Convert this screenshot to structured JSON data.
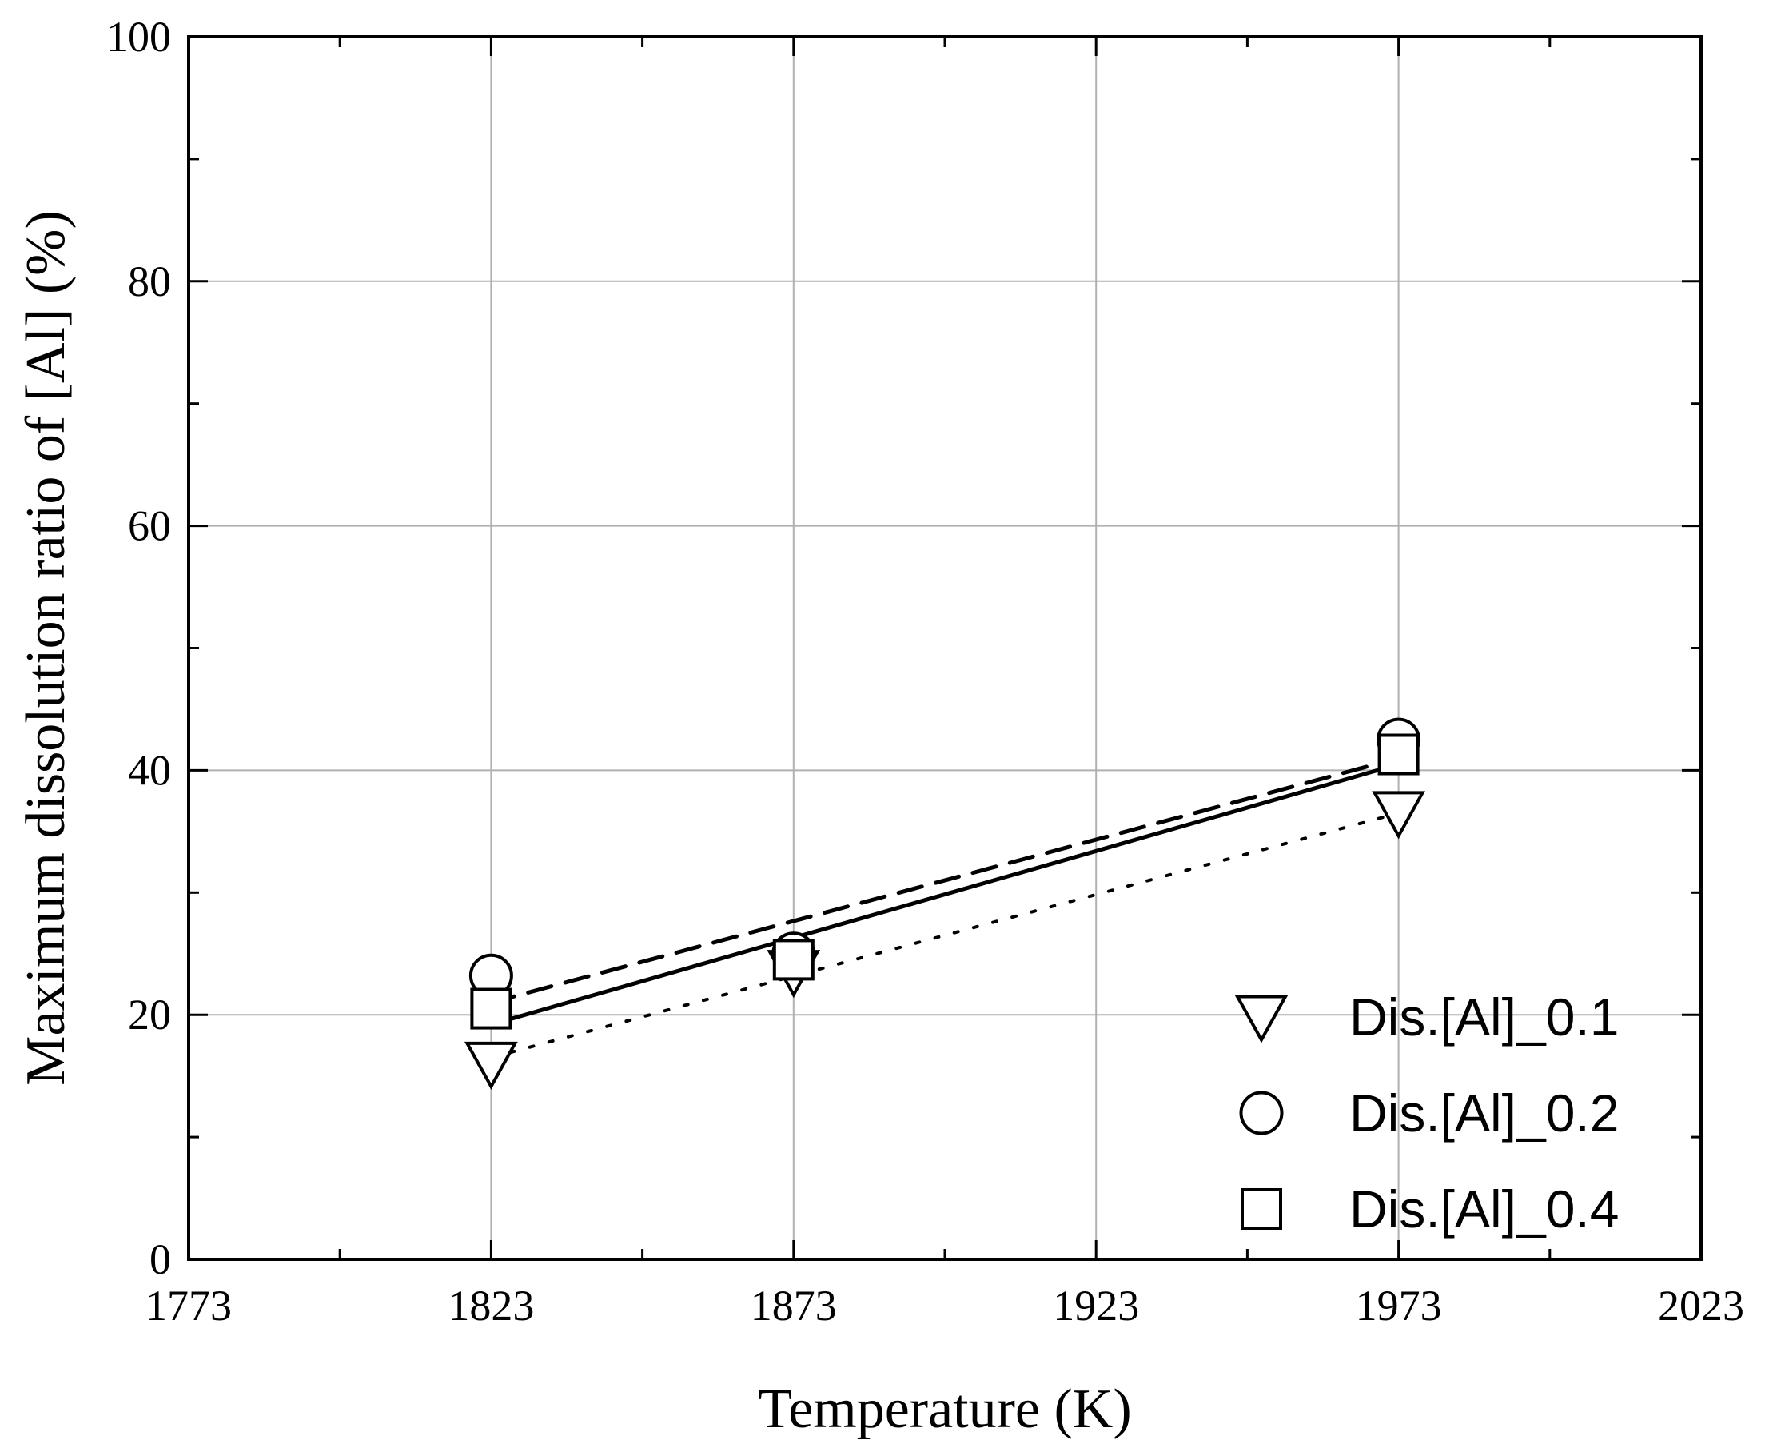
{
  "chart_data": {
    "type": "scatter",
    "xlabel": "Temperature (K)",
    "ylabel": "Maximum dissolution ratio of [Al] (%)",
    "xlim": [
      1773,
      2023
    ],
    "ylim": [
      0,
      100
    ],
    "xticks": [
      "1773",
      "1823",
      "1873",
      "1923",
      "1973",
      "2023"
    ],
    "yticks": [
      "0",
      "20",
      "40",
      "60",
      "80",
      "100"
    ],
    "grid": true,
    "legend_position": "bottom-right",
    "x": [
      1823,
      1873,
      1973
    ],
    "series": [
      {
        "name": "Dis.[Al]_0.1",
        "marker": "triangle-down",
        "values": [
          16.0,
          23.5,
          36.5
        ],
        "fit_line": {
          "style": "dotted",
          "x": [
            1823,
            1973
          ],
          "y": [
            16.5,
            36.5
          ]
        }
      },
      {
        "name": "Dis.[Al]_0.2",
        "marker": "circle",
        "values": [
          23.2,
          25.0,
          42.5
        ],
        "fit_line": {
          "style": "dashed",
          "x": [
            1823,
            1973
          ],
          "y": [
            21.0,
            41.0
          ]
        }
      },
      {
        "name": "Dis.[Al]_0.4",
        "marker": "square",
        "values": [
          20.5,
          24.5,
          41.3
        ],
        "fit_line": {
          "style": "solid",
          "x": [
            1823,
            1973
          ],
          "y": [
            19.2,
            40.5
          ]
        }
      }
    ]
  }
}
